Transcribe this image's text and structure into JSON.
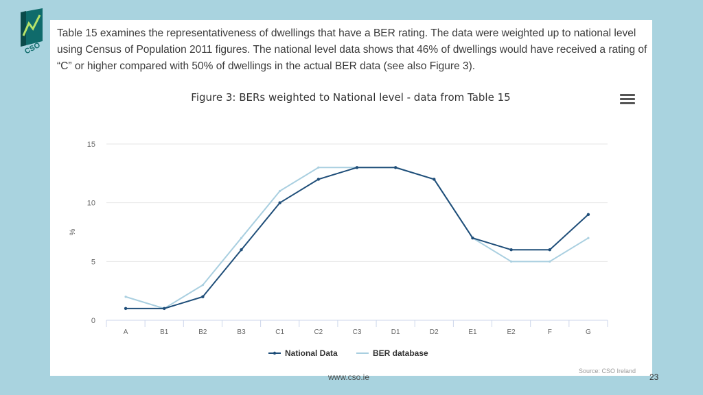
{
  "intro_text": "Table 15 examines the representativeness of dwellings that have a BER rating. The data were weighted up to national level using Census of Population 2011 figures. The national level data shows that 46% of dwellings would have received a rating of “C” or higher compared with 50% of dwellings in the actual BER data (see also Figure 3).",
  "logo_text": "CSO",
  "footer": {
    "url": "www.cso.ie",
    "page": "23"
  },
  "colors": {
    "national": "#1f4e79",
    "ber": "#a9cfe0",
    "background": "#a9d3df"
  },
  "chart_data": {
    "type": "line",
    "title": "Figure 3: BERs weighted to National level - data from Table 15",
    "xlabel": "",
    "ylabel": "%",
    "ylim": [
      0,
      15
    ],
    "yticks": [
      0,
      5,
      10,
      15
    ],
    "grid": true,
    "legend": "bottom-center",
    "credits": "Source: CSO Ireland",
    "categories": [
      "A",
      "B1",
      "B2",
      "B3",
      "C1",
      "C2",
      "C3",
      "D1",
      "D2",
      "E1",
      "E2",
      "F",
      "G"
    ],
    "series": [
      {
        "name": "National Data",
        "values": [
          1,
          1,
          2,
          6,
          10,
          12,
          13,
          13,
          12,
          7,
          6,
          6,
          9
        ]
      },
      {
        "name": "BER database",
        "values": [
          2,
          1,
          3,
          7,
          11,
          13,
          13,
          13,
          12,
          7,
          5,
          5,
          7
        ]
      }
    ]
  }
}
